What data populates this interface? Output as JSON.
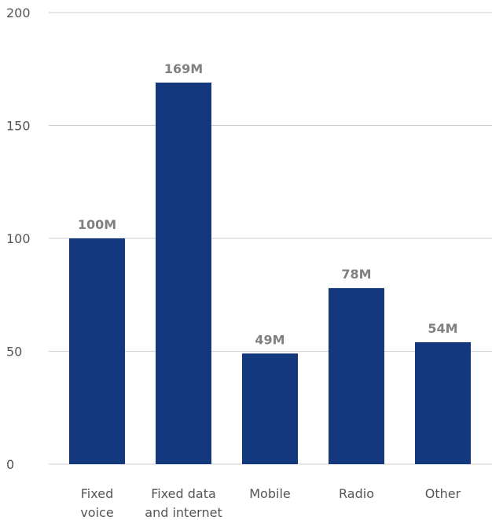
{
  "chart_data": {
    "type": "bar",
    "title": "",
    "xlabel": "",
    "ylabel": "",
    "categories": [
      [
        "Fixed",
        "voice"
      ],
      [
        "Fixed data",
        "and internet"
      ],
      [
        "Mobile"
      ],
      [
        "Radio"
      ],
      [
        "Other"
      ]
    ],
    "values": [
      100,
      169,
      49,
      78,
      54
    ],
    "data_labels": [
      "100M",
      "169M",
      "49M",
      "78M",
      "54M"
    ],
    "ylim": [
      0,
      200
    ],
    "yticks": [
      0,
      50,
      100,
      150,
      200
    ],
    "ytick_labels": [
      "0",
      "50",
      "100",
      "150",
      "200"
    ],
    "grid": true,
    "legend": "none",
    "colors": {
      "bar": "#13387e",
      "grid": "#cfcfcf",
      "tick_text": "#555555",
      "data_label_text": "#808080"
    }
  }
}
